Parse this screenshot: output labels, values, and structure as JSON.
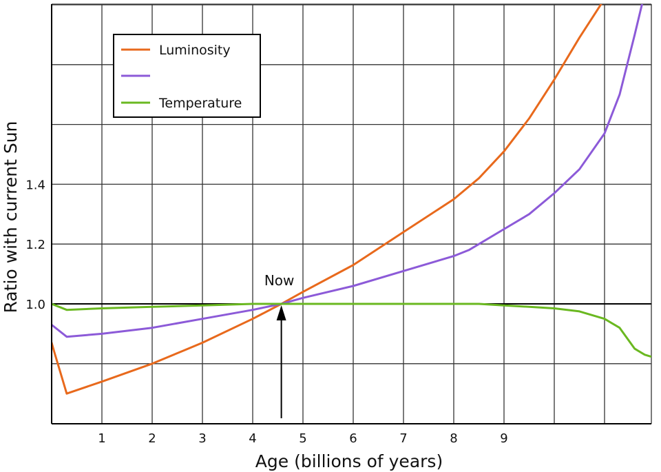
{
  "chart_data": {
    "type": "line",
    "xlabel": "Age (billions of years)",
    "ylabel": "Ratio with current Sun",
    "xlim": [
      0,
      12
    ],
    "ylim": [
      0.6,
      2.0
    ],
    "x_ticks": [
      {
        "value": 1,
        "label": "1"
      },
      {
        "value": 2,
        "label": "2"
      },
      {
        "value": 3,
        "label": "3"
      },
      {
        "value": 4,
        "label": "4"
      },
      {
        "value": 5,
        "label": "5"
      },
      {
        "value": 6,
        "label": "6"
      },
      {
        "value": 7,
        "label": "7"
      },
      {
        "value": 8,
        "label": "8"
      },
      {
        "value": 9,
        "label": "9"
      }
    ],
    "y_ticks": [
      {
        "value": 1.0,
        "label": "1.0"
      },
      {
        "value": 1.2,
        "label": "1.2"
      },
      {
        "value": 1.4,
        "label": "1.4"
      }
    ],
    "grid": true,
    "legend_position": "top-left",
    "reference_line": {
      "y": 1.0,
      "color": "#000000"
    },
    "annotation": {
      "text": "Now",
      "x": 4.57,
      "y": 1.0
    },
    "series": [
      {
        "name": "Luminosity",
        "color": "#e8691c",
        "x": [
          0,
          0.05,
          0.3,
          1.0,
          2.0,
          3.0,
          4.0,
          4.57,
          5.0,
          6.0,
          7.0,
          8.0,
          8.5,
          9.0,
          9.5,
          10.0,
          10.5,
          11.0,
          11.3
        ],
        "y": [
          0.87,
          0.84,
          0.7,
          0.74,
          0.8,
          0.87,
          0.95,
          1.0,
          1.04,
          1.13,
          1.24,
          1.35,
          1.42,
          1.51,
          1.62,
          1.75,
          1.89,
          2.02,
          2.09
        ]
      },
      {
        "name": "",
        "color": "#8c5ad8",
        "x": [
          0,
          0.3,
          1.0,
          2.0,
          3.0,
          4.0,
          4.57,
          5.0,
          6.0,
          7.0,
          8.0,
          8.3,
          9.0,
          9.5,
          10.0,
          10.5,
          11.0,
          11.3,
          11.6,
          11.8
        ],
        "y": [
          0.93,
          0.89,
          0.9,
          0.92,
          0.95,
          0.98,
          1.0,
          1.02,
          1.06,
          1.11,
          1.16,
          1.18,
          1.25,
          1.3,
          1.37,
          1.45,
          1.57,
          1.7,
          1.9,
          2.04
        ]
      },
      {
        "name": "Temperature",
        "color": "#6ab820",
        "x": [
          0,
          0.3,
          1.0,
          2.0,
          3.0,
          4.0,
          4.57,
          5.0,
          6.0,
          7.0,
          8.0,
          8.5,
          9.0,
          9.5,
          10.0,
          10.5,
          11.0,
          11.3,
          11.6,
          11.8,
          12.0
        ],
        "y": [
          1.0,
          0.98,
          0.985,
          0.99,
          0.995,
          1.0,
          1.0,
          1.0,
          1.0,
          1.0,
          1.0,
          1.0,
          0.995,
          0.99,
          0.985,
          0.975,
          0.95,
          0.92,
          0.85,
          0.83,
          0.82
        ]
      }
    ]
  }
}
